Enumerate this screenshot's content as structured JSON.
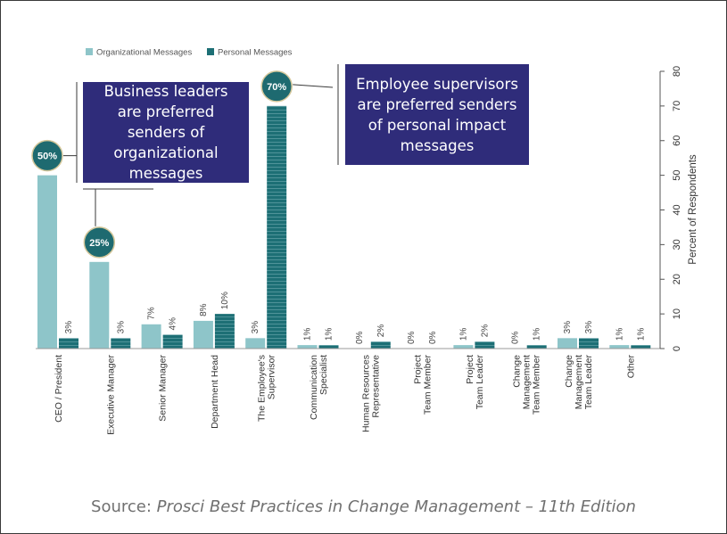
{
  "chart_data": {
    "type": "bar",
    "categories": [
      [
        "CEO / President"
      ],
      [
        "Executive Manager"
      ],
      [
        "Senior Manager"
      ],
      [
        "Department Head"
      ],
      [
        "The Employee's",
        "Supervisor"
      ],
      [
        "Communication",
        "Specialist"
      ],
      [
        "Human Resources",
        "Representative"
      ],
      [
        "Project",
        "Team Member"
      ],
      [
        "Project",
        "Team Leader"
      ],
      [
        "Change",
        "Management",
        "Team Member"
      ],
      [
        "Change",
        "Management",
        "Team Leader"
      ],
      [
        "Other"
      ]
    ],
    "series": [
      {
        "name": "Organizational Messages",
        "color": "#8ec5c9",
        "values": [
          50,
          25,
          7,
          8,
          3,
          1,
          0,
          0,
          1,
          0,
          3,
          1
        ]
      },
      {
        "name": "Personal Messages",
        "color": "#1d6f75",
        "values": [
          3,
          3,
          4,
          10,
          70,
          1,
          2,
          0,
          2,
          1,
          3,
          1
        ]
      }
    ],
    "data_labels": {
      "org": [
        "50%",
        "25%",
        "7%",
        "8%",
        "3%",
        "1%",
        "0%",
        "0%",
        "1%",
        "0%",
        "3%",
        "1%"
      ],
      "personal": [
        "3%",
        "3%",
        "4%",
        "10%",
        "70%",
        "1%",
        "2%",
        "0%",
        "2%",
        "1%",
        "3%",
        "1%"
      ]
    },
    "highlighted": [
      {
        "series": 0,
        "index": 0,
        "label": "50%"
      },
      {
        "series": 0,
        "index": 1,
        "label": "25%"
      },
      {
        "series": 1,
        "index": 4,
        "label": "70%"
      }
    ],
    "ylabel": "Percent of Respondents",
    "ylim": [
      0,
      80
    ],
    "yticks": [
      0,
      10,
      20,
      30,
      40,
      50,
      60,
      70,
      80
    ],
    "legend_position": "top-left"
  },
  "callouts": {
    "left": "Business leaders are preferred senders of organizational messages",
    "right": "Employee supervisors are preferred senders of personal impact messages"
  },
  "source": {
    "prefix": "Source: ",
    "title": "Prosci Best Practices in Change Management – 11th Edition"
  },
  "colors": {
    "badge": "#1e6a70",
    "callout": "#2f2c7a"
  }
}
